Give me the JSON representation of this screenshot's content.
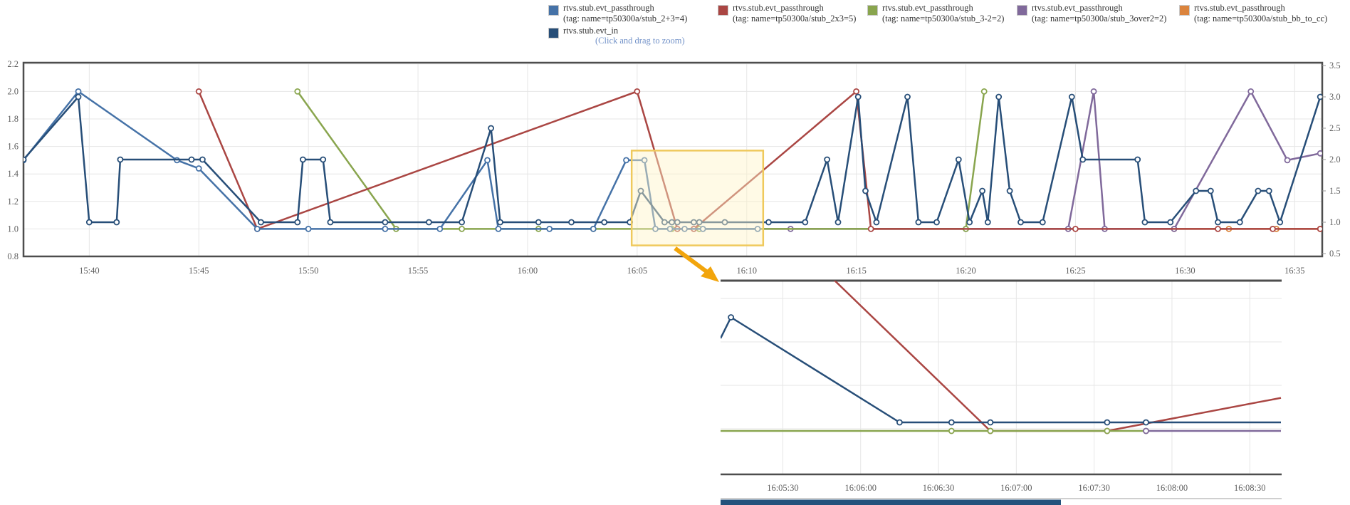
{
  "hint": "(Click and drag to zoom)",
  "legend": {
    "items": [
      {
        "name": "rtvs.stub.evt_passthrough",
        "tag": "(tag: name=tp50300a/stub_2+3=4)",
        "color": "#4572A7"
      },
      {
        "name": "rtvs.stub.evt_passthrough",
        "tag": "(tag: name=tp50300a/stub_2x3=5)",
        "color": "#AA4643"
      },
      {
        "name": "rtvs.stub.evt_passthrough",
        "tag": "(tag: name=tp50300a/stub_3-2=2)",
        "color": "#89A54E"
      },
      {
        "name": "rtvs.stub.evt_passthrough",
        "tag": "(tag: name=tp50300a/stub_3over2=2)",
        "color": "#80699B"
      },
      {
        "name": "rtvs.stub.evt_passthrough",
        "tag": "(tag: name=tp50300a/stub_bb_to_cc)",
        "color": "#DB843D"
      },
      {
        "name": "rtvs.stub.evt_in",
        "tag": "",
        "color": "#274E78"
      }
    ]
  },
  "colors": {
    "grid": "#E6E6E6",
    "border": "#4D4D4D",
    "highlight_fill": "#FFF3C8",
    "highlight_border": "#EFC95C",
    "arrow": "#F2A50C",
    "navigator_bar": "#23527C",
    "navigator_line": "#BFBFBF"
  },
  "chart_data": [
    {
      "id": "main",
      "type": "line",
      "title": "",
      "x_range": [
        "15:37:00",
        "16:36:15"
      ],
      "x_ticks": [
        "15:40",
        "15:45",
        "15:50",
        "15:55",
        "16:00",
        "16:05",
        "16:10",
        "16:15",
        "16:20",
        "16:25",
        "16:30",
        "16:35"
      ],
      "left_axis": {
        "ticks": [
          "2.2",
          "2.0",
          "1.8",
          "1.6",
          "1.4",
          "1.2",
          "1.0",
          "0.8"
        ],
        "min": 0.8,
        "max": 2.2
      },
      "right_axis": {
        "ticks": [
          "3.5",
          "3.0",
          "2.5",
          "2.0",
          "1.5",
          "1.0",
          "0.5"
        ],
        "min": 0.5,
        "max": 3.5
      },
      "grid": true,
      "legend_position": "top",
      "highlight_box": {
        "from": "16:04:45",
        "to": "16:10:45",
        "value_top": 1.57,
        "value_bottom": 0.88
      },
      "series": [
        {
          "name": "rtvs.stub.evt_passthrough (tag: name=tp50300a/stub_bb_to_cc)",
          "color": "#DB843D",
          "axis": "left",
          "points": [
            [
              "16:29:30",
              1.0
            ],
            [
              "16:32:00",
              1.0
            ],
            [
              "16:34:10",
              1.0
            ],
            [
              "16:36:10",
              1.0
            ]
          ]
        },
        {
          "name": "rtvs.stub.evt_passthrough (tag: name=tp50300a/stub_3over2=2)",
          "color": "#80699B",
          "axis": "left",
          "points": [
            [
              "16:07:50",
              1.0
            ],
            [
              "16:12:00",
              1.0
            ],
            [
              "16:20:00",
              1.0
            ],
            [
              "16:24:40",
              1.0
            ],
            [
              "16:25:50",
              2.0
            ],
            [
              "16:26:20",
              1.0
            ],
            [
              "16:29:30",
              1.0
            ],
            [
              "16:33:00",
              2.0
            ],
            [
              "16:34:40",
              1.5
            ],
            [
              "16:36:10",
              1.55
            ]
          ]
        },
        {
          "name": "rtvs.stub.evt_passthrough (tag: name=tp50300a/stub_3-2=2)",
          "color": "#89A54E",
          "axis": "left",
          "points": [
            [
              "15:49:30",
              2.0
            ],
            [
              "15:54:00",
              1.0
            ],
            [
              "15:57:00",
              1.0
            ],
            [
              "16:00:30",
              1.0
            ],
            [
              "16:03:00",
              1.0
            ],
            [
              "16:06:35",
              1.0
            ],
            [
              "16:07:50",
              1.0
            ],
            [
              "16:20:00",
              1.0
            ],
            [
              "16:20:50",
              2.0
            ]
          ]
        },
        {
          "name": "rtvs.stub.evt_passthrough (tag: name=tp50300a/stub_2x3=5)",
          "color": "#AA4643",
          "axis": "left",
          "points": [
            [
              "15:45:00",
              2.0
            ],
            [
              "15:47:40",
              1.0
            ],
            [
              "16:05:00",
              2.0
            ],
            [
              "16:06:50",
              1.0
            ],
            [
              "16:07:35",
              1.0
            ],
            [
              "16:15:00",
              2.0
            ],
            [
              "16:15:40",
              1.0
            ],
            [
              "16:25:00",
              1.0
            ],
            [
              "16:31:30",
              1.0
            ],
            [
              "16:34:00",
              1.0
            ],
            [
              "16:36:10",
              1.0
            ]
          ]
        },
        {
          "name": "rtvs.stub.evt_passthrough (tag: name=tp50300a/stub_2+3=4)",
          "color": "#4572A7",
          "axis": "left",
          "points": [
            [
              "15:37:00",
              1.5
            ],
            [
              "15:39:30",
              2.0
            ],
            [
              "15:44:00",
              1.5
            ],
            [
              "15:45:00",
              1.44
            ],
            [
              "15:47:40",
              1.0
            ],
            [
              "15:50:00",
              1.0
            ],
            [
              "15:53:30",
              1.0
            ],
            [
              "15:56:00",
              1.0
            ],
            [
              "15:58:10",
              1.5
            ],
            [
              "15:58:40",
              1.0
            ],
            [
              "16:01:00",
              1.0
            ],
            [
              "16:03:00",
              1.0
            ],
            [
              "16:04:30",
              1.5
            ],
            [
              "16:05:20",
              1.5
            ],
            [
              "16:05:50",
              1.0
            ],
            [
              "16:06:30",
              1.0
            ],
            [
              "16:07:10",
              1.0
            ],
            [
              "16:08:00",
              1.0
            ],
            [
              "16:10:30",
              1.0
            ]
          ]
        },
        {
          "name": "rtvs.stub.evt_in",
          "color": "#274E78",
          "axis": "right",
          "points": [
            [
              "15:37:00",
              2.0
            ],
            [
              "15:39:30",
              3.0
            ],
            [
              "15:40:00",
              1.0
            ],
            [
              "15:41:15",
              1.0
            ],
            [
              "15:41:25",
              2.0
            ],
            [
              "15:44:40",
              2.0
            ],
            [
              "15:45:10",
              2.0
            ],
            [
              "15:47:50",
              1.0
            ],
            [
              "15:49:30",
              1.0
            ],
            [
              "15:49:45",
              2.0
            ],
            [
              "15:50:40",
              2.0
            ],
            [
              "15:51:00",
              1.0
            ],
            [
              "15:53:30",
              1.0
            ],
            [
              "15:55:30",
              1.0
            ],
            [
              "15:57:00",
              1.0
            ],
            [
              "15:58:20",
              2.5
            ],
            [
              "15:58:45",
              1.0
            ],
            [
              "16:00:30",
              1.0
            ],
            [
              "16:02:00",
              1.0
            ],
            [
              "16:03:30",
              1.0
            ],
            [
              "16:04:40",
              1.0
            ],
            [
              "16:05:10",
              1.5
            ],
            [
              "16:06:15",
              1.0
            ],
            [
              "16:06:35",
              1.0
            ],
            [
              "16:06:50",
              1.0
            ],
            [
              "16:07:35",
              1.0
            ],
            [
              "16:07:50",
              1.0
            ],
            [
              "16:09:00",
              1.0
            ],
            [
              "16:11:00",
              1.0
            ],
            [
              "16:12:40",
              1.0
            ],
            [
              "16:13:40",
              2.0
            ],
            [
              "16:14:10",
              1.0
            ],
            [
              "16:15:05",
              3.0
            ],
            [
              "16:15:25",
              1.5
            ],
            [
              "16:15:55",
              1.0
            ],
            [
              "16:17:20",
              3.0
            ],
            [
              "16:17:50",
              1.0
            ],
            [
              "16:18:40",
              1.0
            ],
            [
              "16:19:40",
              2.0
            ],
            [
              "16:20:10",
              1.0
            ],
            [
              "16:20:45",
              1.5
            ],
            [
              "16:21:00",
              1.0
            ],
            [
              "16:21:30",
              3.0
            ],
            [
              "16:22:00",
              1.5
            ],
            [
              "16:22:30",
              1.0
            ],
            [
              "16:23:30",
              1.0
            ],
            [
              "16:24:50",
              3.0
            ],
            [
              "16:25:20",
              2.0
            ],
            [
              "16:27:50",
              2.0
            ],
            [
              "16:28:10",
              1.0
            ],
            [
              "16:29:20",
              1.0
            ],
            [
              "16:30:30",
              1.5
            ],
            [
              "16:31:10",
              1.5
            ],
            [
              "16:31:30",
              1.0
            ],
            [
              "16:32:30",
              1.0
            ],
            [
              "16:33:20",
              1.5
            ],
            [
              "16:33:50",
              1.5
            ],
            [
              "16:34:20",
              1.0
            ],
            [
              "16:36:10",
              3.0
            ]
          ]
        }
      ]
    },
    {
      "id": "inset",
      "type": "line",
      "title": "",
      "x_range": [
        "16:05:06",
        "16:08:42"
      ],
      "x_ticks": [
        "16:05:30",
        "16:06:00",
        "16:06:30",
        "16:07:00",
        "16:07:30",
        "16:08:00",
        "16:08:30"
      ],
      "left_axis": {
        "ticks": [],
        "min": 0.84,
        "max": 1.55
      },
      "right_axis": {
        "ticks": [],
        "min": 0.75,
        "max": 1.67
      },
      "grid": true,
      "series": [
        {
          "name": "rtvs.stub.evt_passthrough (tag: name=tp50300a/stub_2x3=5)",
          "color": "#AA4643",
          "axis": "left",
          "points": [
            [
              "16:05:00",
              2.0,
              0
            ],
            [
              "16:06:50",
              1.0
            ],
            [
              "16:07:35",
              1.0
            ],
            [
              "16:08:42",
              1.12,
              0
            ]
          ]
        },
        {
          "name": "rtvs.stub.evt_passthrough (tag: name=tp50300a/stub_3-2=2)",
          "color": "#89A54E",
          "axis": "left",
          "points": [
            [
              "16:05:06",
              1.0,
              0
            ],
            [
              "16:06:35",
              1.0
            ],
            [
              "16:06:50",
              1.0
            ],
            [
              "16:07:35",
              1.0
            ],
            [
              "16:07:50",
              1.0
            ]
          ]
        },
        {
          "name": "rtvs.stub.evt_passthrough (tag: name=tp50300a/stub_3over2=2)",
          "color": "#80699B",
          "axis": "left",
          "points": [
            [
              "16:07:50",
              1.0
            ],
            [
              "16:08:42",
              1.0,
              0
            ]
          ]
        },
        {
          "name": "rtvs.stub.evt_in",
          "color": "#274E78",
          "axis": "right",
          "points": [
            [
              "16:05:06",
              1.4,
              0
            ],
            [
              "16:05:10",
              1.5
            ],
            [
              "16:06:15",
              1.0
            ],
            [
              "16:06:35",
              1.0
            ],
            [
              "16:06:50",
              1.0
            ],
            [
              "16:07:35",
              1.0
            ],
            [
              "16:07:50",
              1.0
            ],
            [
              "16:08:42",
              1.0,
              0
            ]
          ]
        }
      ]
    }
  ]
}
